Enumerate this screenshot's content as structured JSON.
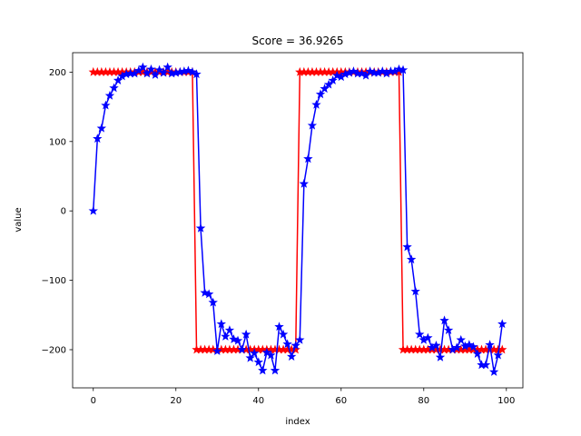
{
  "chart_data": {
    "type": "line",
    "title": "Score = 36.9265",
    "xlabel": "index",
    "ylabel": "value",
    "xlim": [
      -5,
      104
    ],
    "ylim": [
      -255,
      228
    ],
    "x_ticks": [
      0,
      20,
      40,
      60,
      80,
      100
    ],
    "y_ticks": [
      -200,
      -100,
      0,
      100,
      200
    ],
    "y_tick_labels": [
      "−200",
      "−100",
      "0",
      "100",
      "200"
    ],
    "grid": false,
    "colors": {
      "target": "#ff0000",
      "prediction": "#0000ff"
    },
    "series": [
      {
        "key": "target",
        "marker": "star",
        "x": [
          0,
          1,
          2,
          3,
          4,
          5,
          6,
          7,
          8,
          9,
          10,
          11,
          12,
          13,
          14,
          15,
          16,
          17,
          18,
          19,
          20,
          21,
          22,
          23,
          24,
          25,
          26,
          27,
          28,
          29,
          30,
          31,
          32,
          33,
          34,
          35,
          36,
          37,
          38,
          39,
          40,
          41,
          42,
          43,
          44,
          45,
          46,
          47,
          48,
          49,
          50,
          51,
          52,
          53,
          54,
          55,
          56,
          57,
          58,
          59,
          60,
          61,
          62,
          63,
          64,
          65,
          66,
          67,
          68,
          69,
          70,
          71,
          72,
          73,
          74,
          75,
          76,
          77,
          78,
          79,
          80,
          81,
          82,
          83,
          84,
          85,
          86,
          87,
          88,
          89,
          90,
          91,
          92,
          93,
          94,
          95,
          96,
          97,
          98,
          99
        ],
        "values": [
          200,
          200,
          200,
          200,
          200,
          200,
          200,
          200,
          200,
          200,
          200,
          200,
          200,
          200,
          200,
          200,
          200,
          200,
          200,
          200,
          200,
          200,
          200,
          200,
          200,
          -200,
          -200,
          -200,
          -200,
          -200,
          -200,
          -200,
          -200,
          -200,
          -200,
          -200,
          -200,
          -200,
          -200,
          -200,
          -200,
          -200,
          -200,
          -200,
          -200,
          -200,
          -200,
          -200,
          -200,
          -200,
          200,
          200,
          200,
          200,
          200,
          200,
          200,
          200,
          200,
          200,
          200,
          200,
          200,
          200,
          200,
          200,
          200,
          200,
          200,
          200,
          200,
          200,
          200,
          200,
          200,
          -200,
          -200,
          -200,
          -200,
          -200,
          -200,
          -200,
          -200,
          -200,
          -200,
          -200,
          -200,
          -200,
          -200,
          -200,
          -200,
          -200,
          -200,
          -200,
          -200,
          -200,
          -200,
          -200,
          -200,
          -200
        ]
      },
      {
        "key": "prediction",
        "marker": "star",
        "x": [
          0,
          1,
          2,
          3,
          4,
          5,
          6,
          7,
          8,
          9,
          10,
          11,
          12,
          13,
          14,
          15,
          16,
          17,
          18,
          19,
          20,
          21,
          22,
          23,
          24,
          25,
          26,
          27,
          28,
          29,
          30,
          31,
          32,
          33,
          34,
          35,
          36,
          37,
          38,
          39,
          40,
          41,
          42,
          43,
          44,
          45,
          46,
          47,
          48,
          49,
          50,
          51,
          52,
          53,
          54,
          55,
          56,
          57,
          58,
          59,
          60,
          61,
          62,
          63,
          64,
          65,
          66,
          67,
          68,
          69,
          70,
          71,
          72,
          73,
          74,
          75,
          76,
          77,
          78,
          79,
          80,
          81,
          82,
          83,
          84,
          85,
          86,
          87,
          88,
          89,
          90,
          91,
          92,
          93,
          94,
          95,
          96,
          97,
          98,
          99
        ],
        "values": [
          0,
          104,
          119,
          152,
          166,
          177,
          188,
          194,
          197,
          198,
          198,
          202,
          207,
          198,
          204,
          196,
          203,
          199,
          207,
          198,
          199,
          200,
          201,
          202,
          200,
          197,
          -25,
          -118,
          -120,
          -132,
          -202,
          -163,
          -181,
          -172,
          -185,
          -187,
          -200,
          -178,
          -212,
          -205,
          -218,
          -230,
          -204,
          -208,
          -230,
          -167,
          -178,
          -192,
          -210,
          -194,
          -186,
          39,
          75,
          123,
          153,
          168,
          176,
          182,
          188,
          195,
          193,
          197,
          199,
          201,
          198,
          198,
          195,
          201,
          199,
          199,
          201,
          198,
          201,
          201,
          204,
          203,
          -52,
          -70,
          -116,
          -178,
          -186,
          -183,
          -197,
          -194,
          -211,
          -158,
          -172,
          -200,
          -197,
          -186,
          -195,
          -193,
          -196,
          -206,
          -222,
          -222,
          -193,
          -232,
          -208,
          -163
        ]
      }
    ]
  }
}
